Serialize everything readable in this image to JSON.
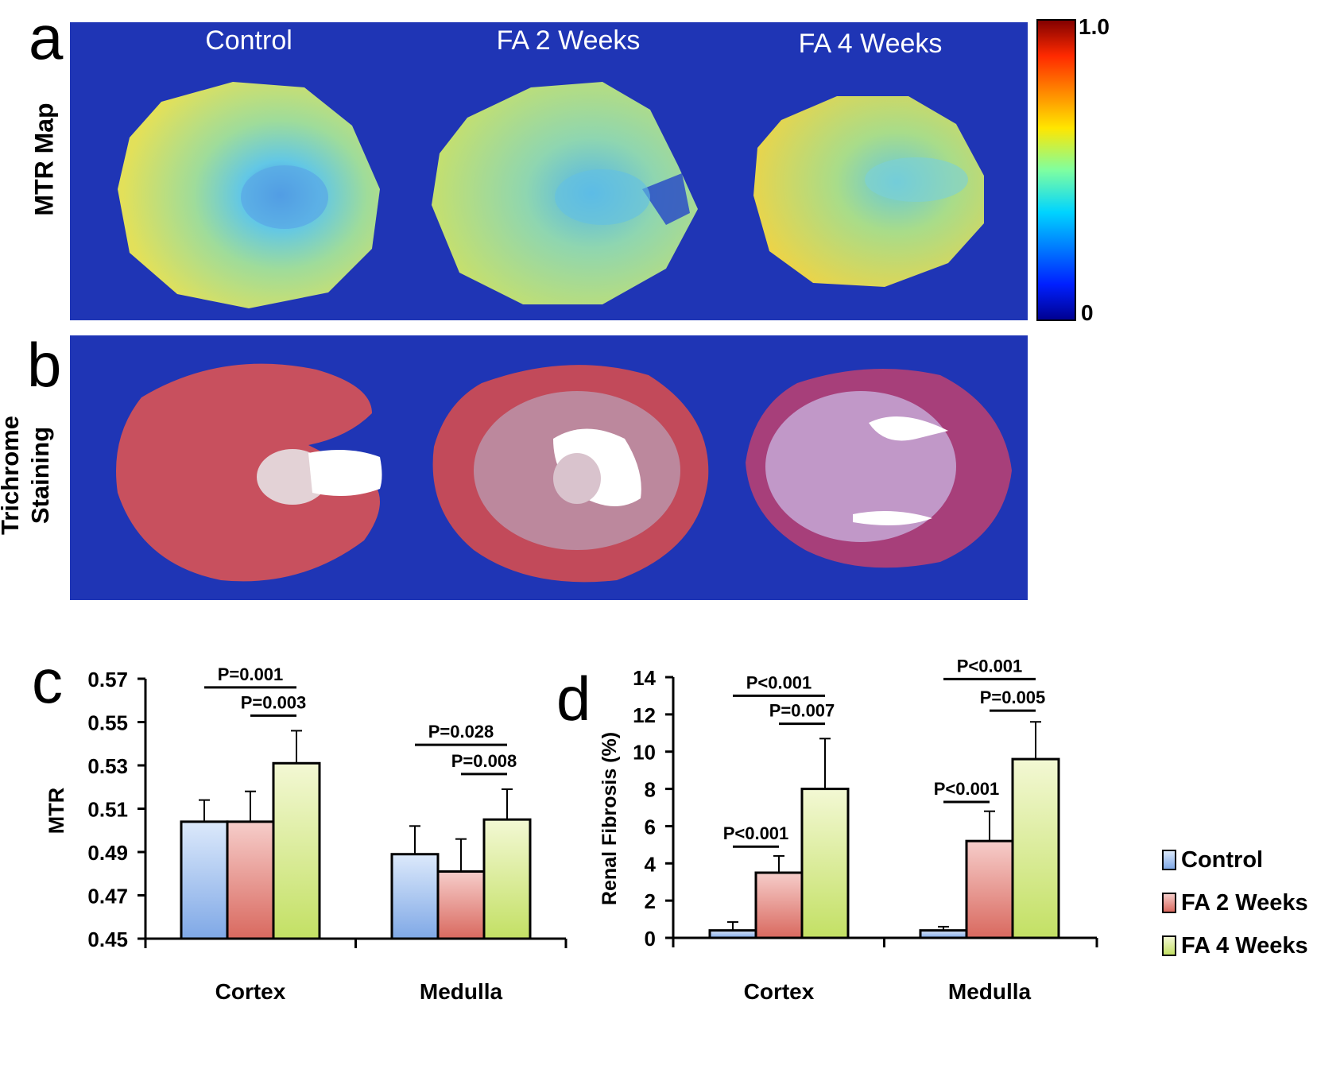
{
  "panels": {
    "a": "a",
    "b": "b",
    "c": "c",
    "d": "d"
  },
  "row_labels": {
    "mtr_map": "MTR Map",
    "trichrome_1": "Trichrome",
    "trichrome_2": "Staining"
  },
  "column_titles": [
    "Control",
    "FA 2 Weeks",
    "FA 4 Weeks"
  ],
  "colorbar": {
    "max_label": "1.0",
    "min_label": "0"
  },
  "colors": {
    "panel_bg": "#1f35b5",
    "control": "#a8c6ee",
    "fa2": "#e48b86",
    "fa4": "#d8ec8a"
  },
  "chart_data": [
    {
      "type": "bar",
      "panel": "c",
      "ylabel": "MTR",
      "xlabel": "",
      "ylim": [
        0.45,
        0.57
      ],
      "yticks": [
        "0.57",
        "0.55",
        "0.53",
        "0.51",
        "0.49",
        "0.47",
        "0.45"
      ],
      "categories": [
        "Cortex",
        "Medulla"
      ],
      "series": [
        {
          "name": "Control",
          "values": [
            0.504,
            0.489
          ],
          "errors": [
            0.01,
            0.013
          ]
        },
        {
          "name": "FA 2 Weeks",
          "values": [
            0.504,
            0.481
          ],
          "errors": [
            0.014,
            0.015
          ]
        },
        {
          "name": "FA 4 Weeks",
          "values": [
            0.531,
            0.505
          ],
          "errors": [
            0.015,
            0.014
          ]
        }
      ],
      "significance": [
        {
          "label": "P=0.001",
          "category": 0,
          "from": 0,
          "to": 2,
          "level": 0.566
        },
        {
          "label": "P=0.003",
          "category": 0,
          "from": 1,
          "to": 2,
          "level": 0.553
        },
        {
          "label": "P=0.028",
          "category": 1,
          "from": 0,
          "to": 2,
          "level": 0.5395
        },
        {
          "label": "P=0.008",
          "category": 1,
          "from": 1,
          "to": 2,
          "level": 0.526
        }
      ]
    },
    {
      "type": "bar",
      "panel": "d",
      "ylabel": "Renal Fibrosis (%)",
      "xlabel": "",
      "ylim": [
        0,
        14
      ],
      "yticks": [
        "14",
        "12",
        "10",
        "8",
        "6",
        "4",
        "2",
        "0"
      ],
      "categories": [
        "Cortex",
        "Medulla"
      ],
      "series": [
        {
          "name": "Control",
          "values": [
            0.4,
            0.4
          ],
          "errors": [
            0.45,
            0.2
          ]
        },
        {
          "name": "FA 2 Weeks",
          "values": [
            3.5,
            5.2
          ],
          "errors": [
            0.9,
            1.6
          ]
        },
        {
          "name": "FA 4 Weeks",
          "values": [
            8.0,
            9.6
          ],
          "errors": [
            2.7,
            2.0
          ]
        }
      ],
      "significance": [
        {
          "label": "P<0.001",
          "category": 0,
          "from": 0,
          "to": 1,
          "level": 4.9
        },
        {
          "label": "P<0.001",
          "category": 0,
          "from": 0,
          "to": 2,
          "level": 13.0
        },
        {
          "label": "P=0.007",
          "category": 0,
          "from": 1,
          "to": 2,
          "level": 11.5
        },
        {
          "label": "P<0.001",
          "category": 1,
          "from": 0,
          "to": 1,
          "level": 7.3
        },
        {
          "label": "P<0.001",
          "category": 1,
          "from": 0,
          "to": 2,
          "level": 13.9
        },
        {
          "label": "P=0.005",
          "category": 1,
          "from": 1,
          "to": 2,
          "level": 12.2
        }
      ]
    }
  ],
  "legend": [
    "Control",
    "FA 2 Weeks",
    "FA 4 Weeks"
  ]
}
